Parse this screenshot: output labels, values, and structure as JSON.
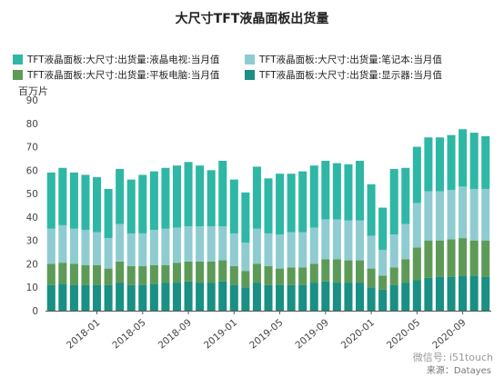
{
  "chart_data": {
    "type": "bar",
    "stacked": true,
    "title": "大尺寸TFT液晶面板出货量",
    "ylabel": "百万片",
    "ylim": [
      0,
      90
    ],
    "yticks": [
      0,
      10,
      20,
      30,
      40,
      50,
      60,
      70,
      80,
      90
    ],
    "grid": false,
    "legend_position": "top",
    "categories": [
      "2017-09",
      "2017-10",
      "2017-11",
      "2017-12",
      "2018-01",
      "2018-02",
      "2018-03",
      "2018-04",
      "2018-05",
      "2018-06",
      "2018-07",
      "2018-08",
      "2018-09",
      "2018-10",
      "2018-11",
      "2018-12",
      "2019-01",
      "2019-02",
      "2019-03",
      "2019-04",
      "2019-05",
      "2019-06",
      "2019-07",
      "2019-08",
      "2019-09",
      "2019-10",
      "2019-11",
      "2019-12",
      "2020-01",
      "2020-02",
      "2020-03",
      "2020-04",
      "2020-05",
      "2020-06",
      "2020-07",
      "2020-08",
      "2020-09",
      "2020-10",
      "2020-11"
    ],
    "xtick_labels": [
      "2018-01",
      "2018-05",
      "2018-09",
      "2019-01",
      "2019-05",
      "2019-09",
      "2020-01",
      "2020-05",
      "2020-09"
    ],
    "xtick_label_categories": [
      "2018-01",
      "2018-05",
      "2018-09",
      "2019-01",
      "2019-05",
      "2019-09",
      "2020-01",
      "2020-05",
      "2020-09"
    ],
    "series": [
      {
        "name": "TFT液晶面板:大尺寸:出货量:显示器:当月值",
        "color": "#1a8f83",
        "values": [
          11,
          11.5,
          11,
          11,
          11,
          11,
          12,
          11,
          11,
          11.5,
          12,
          12,
          12.5,
          12,
          12,
          12.5,
          11,
          10,
          12,
          11,
          11,
          11,
          11,
          12,
          12.5,
          12,
          12,
          12,
          10,
          9,
          11,
          12,
          13,
          14,
          14.5,
          14.5,
          15,
          15,
          14.5
        ]
      },
      {
        "name": "TFT液晶面板:大尺寸:出货量:平板电脑:当月值",
        "color": "#5e9a57",
        "values": [
          9,
          9,
          9,
          8.5,
          8.5,
          7,
          9,
          8,
          8,
          8,
          7.5,
          8.5,
          8.5,
          9,
          9,
          9,
          8,
          7,
          8,
          8,
          7,
          7.5,
          7.5,
          8,
          9.5,
          10,
          9.5,
          9.5,
          8,
          6,
          7.5,
          10,
          14,
          16,
          15.5,
          16,
          16,
          15,
          15.5
        ]
      },
      {
        "name": "TFT液晶面板:大尺寸:出货量:笔记本:当月值",
        "color": "#8fccd1",
        "values": [
          15,
          16,
          15,
          15,
          14,
          13,
          16,
          14,
          14,
          15,
          15.5,
          15,
          15,
          15,
          15,
          14.5,
          14,
          12,
          15,
          14,
          14.5,
          15,
          15,
          15.5,
          17,
          17,
          17,
          17,
          14,
          11,
          14,
          15,
          19,
          21,
          21,
          21,
          22,
          22,
          22
        ]
      },
      {
        "name": "TFT液晶面板:大尺寸:出货量:液晶电视:当月值",
        "color": "#2fb7a6",
        "values": [
          24,
          24.5,
          24,
          23.5,
          23.5,
          21,
          23.5,
          23,
          25,
          25,
          26,
          26.5,
          27.5,
          26,
          24,
          28,
          23,
          21.5,
          26.5,
          23.5,
          26,
          25,
          26,
          26.5,
          25,
          24,
          24,
          25.5,
          22,
          18,
          28,
          24,
          24,
          23,
          23,
          23.5,
          24.5,
          24,
          22.5
        ]
      }
    ]
  },
  "legend": {
    "items": [
      {
        "label": "TFT液晶面板:大尺寸:出货量:液晶电视:当月值",
        "color": "#2fb7a6"
      },
      {
        "label": "TFT液晶面板:大尺寸:出货量:笔记本:当月值",
        "color": "#8fccd1"
      },
      {
        "label": "TFT液晶面板:大尺寸:出货量:平板电脑:当月值",
        "color": "#5e9a57"
      },
      {
        "label": "TFT液晶面板:大尺寸:出货量:显示器:当月值",
        "color": "#1a8f83"
      }
    ]
  },
  "watermark": "微信号: i51touch",
  "source": "来源：Datayes"
}
